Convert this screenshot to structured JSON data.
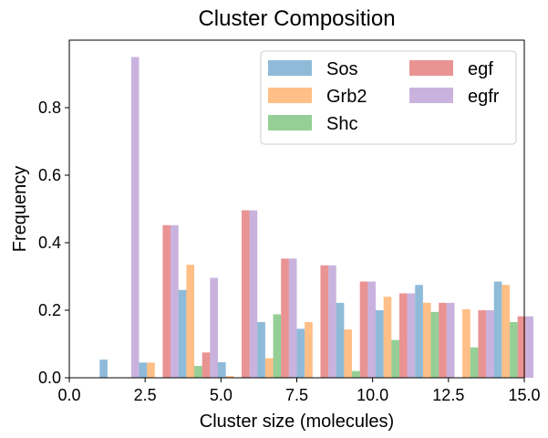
{
  "chart_data": {
    "type": "bar",
    "title": "Cluster Composition",
    "xlabel": "Cluster size (molecules)",
    "ylabel": "Frequency",
    "xlim": [
      0,
      15
    ],
    "ylim": [
      0,
      1.0
    ],
    "xticks": [
      0,
      2.5,
      5,
      7.5,
      10,
      12.5,
      15
    ],
    "xtick_labels": [
      "0.0",
      "2.5",
      "5.0",
      "7.5",
      "10.0",
      "12.5",
      "15.0"
    ],
    "yticks": [
      0,
      0.2,
      0.4,
      0.6,
      0.8
    ],
    "ytick_labels": [
      "0.0",
      "0.2",
      "0.4",
      "0.6",
      "0.8"
    ],
    "legend_position": "top-right",
    "legend_columns": 2,
    "bin_edges": [
      1,
      2.3,
      3.6,
      4.9,
      6.2,
      7.5,
      8.8,
      10.1,
      11.4,
      12.7,
      14.0
    ],
    "series": [
      {
        "name": "Sos",
        "color": "#1f77b4",
        "values": [
          0.054,
          0.045,
          0.26,
          0.046,
          0.165,
          0.145,
          0.222,
          0.2,
          0.275,
          0.0,
          0.285
        ]
      },
      {
        "name": "Grb2",
        "color": "#ff7f0e",
        "values": [
          0.0,
          0.045,
          0.335,
          0.005,
          0.058,
          0.165,
          0.143,
          0.24,
          0.222,
          0.203,
          0.275
        ]
      },
      {
        "name": "Shc",
        "color": "#2ca02c",
        "values": [
          0.0,
          0.0,
          0.035,
          0.0,
          0.188,
          0.0,
          0.02,
          0.112,
          0.195,
          0.09,
          0.165
        ]
      },
      {
        "name": "egf",
        "color": "#d62728",
        "values": [
          0.0,
          0.452,
          0.075,
          0.496,
          0.353,
          0.333,
          0.285,
          0.25,
          0.222,
          0.2,
          0.182
        ]
      },
      {
        "name": "egfr",
        "color": "#9467bd",
        "values": [
          0.95,
          0.452,
          0.296,
          0.496,
          0.353,
          0.333,
          0.285,
          0.25,
          0.222,
          0.2,
          0.182
        ]
      }
    ]
  }
}
